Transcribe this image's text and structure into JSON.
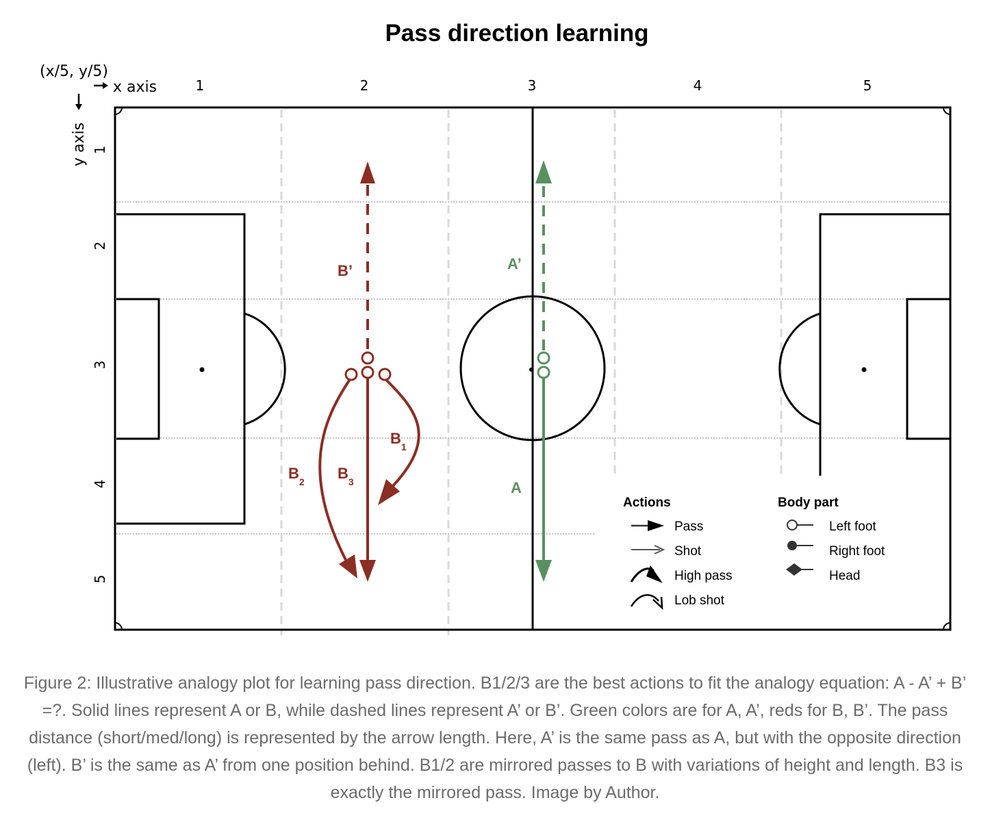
{
  "title": "Pass direction learning",
  "axis": {
    "coord_label": "(x/5, y/5)",
    "x_label": "x axis",
    "y_label": "y axis",
    "x_ticks": [
      "1",
      "2",
      "3",
      "4",
      "5"
    ],
    "y_ticks": [
      "1",
      "2",
      "3",
      "4",
      "5"
    ]
  },
  "labels": {
    "b_prime": "B’",
    "a_prime": "A’",
    "a": "A",
    "b1": "B",
    "b1_sub": "1",
    "b2": "B",
    "b2_sub": "2",
    "b3": "B",
    "b3_sub": "3"
  },
  "legend": {
    "actions_title": "Actions",
    "actions": [
      "Pass",
      "Shot",
      "High pass",
      "Lob shot"
    ],
    "body_title": "Body part",
    "body_parts": [
      "Left foot",
      "Right foot",
      "Head"
    ]
  },
  "colors": {
    "red": "#8b2e23",
    "green": "#5a9060"
  },
  "caption": "Figure 2: Illustrative analogy plot for learning pass direction. B1/2/3 are the best actions to fit the analogy equation: A - A’ + B’ =?. Solid lines represent A or B, while dashed lines represent A’ or B’. Green colors are for A, A’, reds for B, B’. The pass distance (short/med/long) is represented by the arrow length. Here, A’ is the same pass as A, but with the opposite direction (left). B’ is the same as A’ from one position behind. B1/2 are mirrored passes to B with variations of height and length. B3 is exactly the mirrored pass. Image by Author."
}
